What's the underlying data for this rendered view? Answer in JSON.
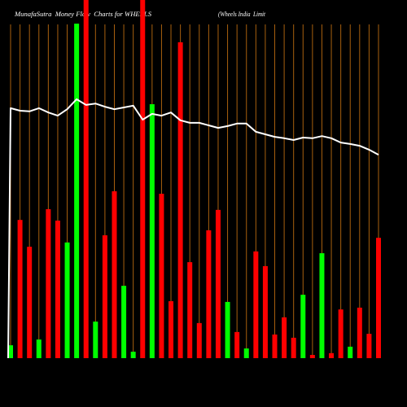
{
  "colors": {
    "background": "#000000",
    "up": "#00ff00",
    "down": "#ff0000",
    "line": "#ffffff",
    "grid": "#a8600e"
  },
  "chart_data": {
    "type": "bar",
    "title": "MunafaSutra  Money Flow  Charts for WHEELS",
    "subtitle": "(Wheels India  Limit",
    "ylim": [
      0,
      1
    ],
    "grid": true,
    "bars": {
      "values": [
        0.036,
        0.386,
        0.311,
        0.052,
        0.416,
        0.384,
        0.323,
        0.934,
        1.0,
        0.102,
        0.343,
        0.466,
        0.202,
        0.018,
        1.0,
        0.709,
        0.459,
        0.159,
        0.882,
        0.268,
        0.098,
        0.357,
        0.414,
        0.157,
        0.073,
        0.027,
        0.298,
        0.257,
        0.066,
        0.114,
        0.057,
        0.177,
        0.009,
        0.293,
        0.014,
        0.136,
        0.032,
        0.141,
        0.068,
        0.336
      ],
      "colors": [
        "#00ff00",
        "#ff0000",
        "#ff0000",
        "#00ff00",
        "#ff0000",
        "#ff0000",
        "#00ff00",
        "#00ff00",
        "#ff0000",
        "#00ff00",
        "#ff0000",
        "#ff0000",
        "#00ff00",
        "#00ff00",
        "#ff0000",
        "#00ff00",
        "#ff0000",
        "#ff0000",
        "#ff0000",
        "#ff0000",
        "#ff0000",
        "#ff0000",
        "#ff0000",
        "#00ff00",
        "#ff0000",
        "#00ff00",
        "#ff0000",
        "#ff0000",
        "#ff0000",
        "#ff0000",
        "#ff0000",
        "#00ff00",
        "#ff0000",
        "#00ff00",
        "#ff0000",
        "#ff0000",
        "#00ff00",
        "#ff0000",
        "#ff0000",
        "#ff0000"
      ]
    },
    "line": {
      "values": [
        0,
        0.698,
        0.691,
        0.689,
        0.698,
        0.686,
        0.677,
        0.695,
        0.723,
        0.707,
        0.711,
        0.702,
        0.695,
        0.7,
        0.705,
        0.666,
        0.682,
        0.677,
        0.686,
        0.664,
        0.657,
        0.657,
        0.65,
        0.643,
        0.648,
        0.655,
        0.655,
        0.632,
        0.625,
        0.618,
        0.614,
        0.609,
        0.616,
        0.614,
        0.62,
        0.614,
        0.602,
        0.598,
        0.593,
        0.582,
        0.568
      ]
    }
  }
}
